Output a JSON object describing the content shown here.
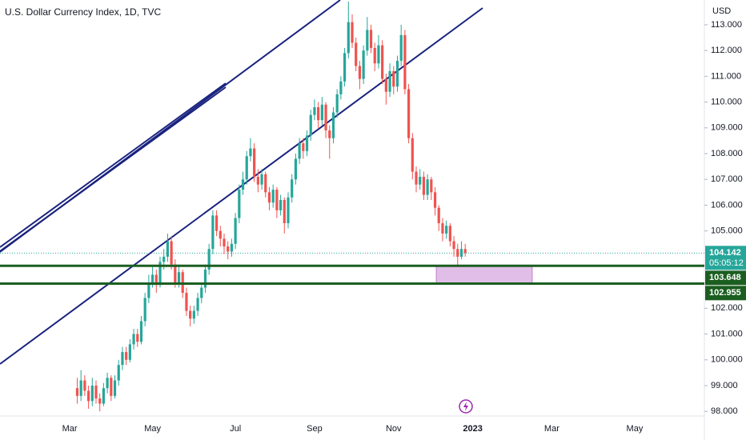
{
  "chart_data": {
    "type": "candlestick",
    "title": "U.S. Dollar Currency Index, 1D, TVC",
    "currency": "USD",
    "up_color": "#26a69a",
    "down_color": "#ef5350",
    "grid": false,
    "ylim": [
      97.82,
      113.96
    ],
    "yticks": [
      {
        "value": 98,
        "label": "98.000"
      },
      {
        "value": 99,
        "label": "99.000"
      },
      {
        "value": 100,
        "label": "100.000"
      },
      {
        "value": 101,
        "label": "101.000"
      },
      {
        "value": 102,
        "label": "102.000"
      },
      {
        "value": 105,
        "label": "105.000"
      },
      {
        "value": 106,
        "label": "106.000"
      },
      {
        "value": 107,
        "label": "107.000"
      },
      {
        "value": 108,
        "label": "108.000"
      },
      {
        "value": 109,
        "label": "109.000"
      },
      {
        "value": 110,
        "label": "110.000"
      },
      {
        "value": 111,
        "label": "111.000"
      },
      {
        "value": 112,
        "label": "112.000"
      },
      {
        "value": 113,
        "label": "113.000"
      }
    ],
    "categories": [
      null,
      null,
      null,
      null,
      null,
      null,
      null,
      null,
      null,
      null,
      null,
      null,
      null,
      null,
      null,
      null,
      null,
      null,
      "Mar",
      null,
      null,
      null,
      null,
      null,
      null,
      null,
      null,
      null,
      null,
      null,
      null,
      null,
      null,
      null,
      null,
      null,
      null,
      null,
      null,
      null,
      "May",
      null,
      null,
      null,
      null,
      null,
      null,
      null,
      null,
      null,
      null,
      null,
      null,
      null,
      null,
      null,
      null,
      null,
      null,
      null,
      null,
      null,
      "Jul",
      null,
      null,
      null,
      null,
      null,
      null,
      null,
      null,
      null,
      null,
      null,
      null,
      null,
      null,
      null,
      null,
      null,
      null,
      null,
      null,
      "Sep",
      null,
      null,
      null,
      null,
      null,
      null,
      null,
      null,
      null,
      null,
      null,
      null,
      null,
      null,
      null,
      null,
      null,
      null,
      null,
      null,
      "Nov",
      null,
      null,
      null,
      null,
      null,
      null,
      null,
      null,
      null,
      null,
      null,
      null,
      null,
      null,
      null,
      null,
      null,
      null,
      null,
      null,
      "2023",
      null,
      null,
      null,
      null,
      null,
      null,
      null,
      null,
      null,
      null,
      null,
      null,
      null,
      null,
      null,
      null,
      null,
      null,
      null,
      null,
      "Mar",
      null,
      null,
      null,
      null,
      null,
      null,
      null,
      null,
      null,
      null,
      null,
      null,
      null,
      null,
      null,
      null,
      null,
      null,
      null,
      null,
      null,
      "May",
      null,
      null,
      null,
      null,
      null,
      null,
      null,
      null,
      null,
      null,
      null,
      null,
      null,
      null,
      null,
      null,
      null,
      null
    ],
    "ohlc": [
      null,
      null,
      null,
      null,
      null,
      null,
      null,
      null,
      null,
      null,
      null,
      null,
      null,
      null,
      null,
      null,
      null,
      null,
      null,
      null,
      [
        98.9,
        99.3,
        98.3,
        98.6
      ],
      [
        98.6,
        99.6,
        98.4,
        99.2
      ],
      [
        99.2,
        99.4,
        98.6,
        98.8
      ],
      [
        98.8,
        99.0,
        98.1,
        98.4
      ],
      [
        98.4,
        99.3,
        98.2,
        99.0
      ],
      [
        99.0,
        99.2,
        98.3,
        98.5
      ],
      [
        98.5,
        98.7,
        98.0,
        98.3
      ],
      [
        98.3,
        99.1,
        98.2,
        98.9
      ],
      [
        98.9,
        99.5,
        98.7,
        99.3
      ],
      [
        99.3,
        99.4,
        98.4,
        98.6
      ],
      [
        98.6,
        99.4,
        98.5,
        99.2
      ],
      [
        99.2,
        100.0,
        99.0,
        99.8
      ],
      [
        99.8,
        100.5,
        99.6,
        100.3
      ],
      [
        100.3,
        100.5,
        99.8,
        100.0
      ],
      [
        100.0,
        100.8,
        99.9,
        100.6
      ],
      [
        100.6,
        101.2,
        100.4,
        101.0
      ],
      [
        101.0,
        101.2,
        100.5,
        100.7
      ],
      [
        100.7,
        101.7,
        100.6,
        101.5
      ],
      [
        101.5,
        102.6,
        101.3,
        102.4
      ],
      [
        102.4,
        103.3,
        102.2,
        103.0
      ],
      [
        103.0,
        103.6,
        102.8,
        103.3
      ],
      [
        103.3,
        103.5,
        102.6,
        102.9
      ],
      [
        102.9,
        104.0,
        102.8,
        103.8
      ],
      [
        103.8,
        104.3,
        103.5,
        104.0
      ],
      [
        104.0,
        104.9,
        103.8,
        104.6
      ],
      [
        104.6,
        104.8,
        103.5,
        103.7
      ],
      [
        103.7,
        103.9,
        102.8,
        103.0
      ],
      [
        103.0,
        103.7,
        102.8,
        103.4
      ],
      [
        103.4,
        103.5,
        102.4,
        102.6
      ],
      [
        102.6,
        102.8,
        101.7,
        101.9
      ],
      [
        101.9,
        102.1,
        101.3,
        101.6
      ],
      [
        101.6,
        102.1,
        101.4,
        101.9
      ],
      [
        101.9,
        102.6,
        101.7,
        102.4
      ],
      [
        102.4,
        103.0,
        102.2,
        102.8
      ],
      [
        102.8,
        103.7,
        102.6,
        103.5
      ],
      [
        103.5,
        104.5,
        103.3,
        104.3
      ],
      [
        104.3,
        105.8,
        104.1,
        105.6
      ],
      [
        105.6,
        105.8,
        104.8,
        105.0
      ],
      [
        105.0,
        105.2,
        104.4,
        104.7
      ],
      [
        104.7,
        104.9,
        104.1,
        104.4
      ],
      [
        104.4,
        104.6,
        103.9,
        104.2
      ],
      [
        104.2,
        104.7,
        104.0,
        104.5
      ],
      [
        104.5,
        105.7,
        104.3,
        105.5
      ],
      [
        105.5,
        106.8,
        105.3,
        106.6
      ],
      [
        106.6,
        107.3,
        106.4,
        107.0
      ],
      [
        107.0,
        108.1,
        106.8,
        107.9
      ],
      [
        107.9,
        108.6,
        107.7,
        108.2
      ],
      [
        108.2,
        108.4,
        106.9,
        107.1
      ],
      [
        107.1,
        107.4,
        106.5,
        106.8
      ],
      [
        106.8,
        107.4,
        106.6,
        107.2
      ],
      [
        107.2,
        107.3,
        106.3,
        106.5
      ],
      [
        106.5,
        106.7,
        105.8,
        106.1
      ],
      [
        106.1,
        106.8,
        105.9,
        106.6
      ],
      [
        106.6,
        106.7,
        105.5,
        105.8
      ],
      [
        105.8,
        106.4,
        105.6,
        106.2
      ],
      [
        106.2,
        106.3,
        104.9,
        105.3
      ],
      [
        105.3,
        106.5,
        105.1,
        106.3
      ],
      [
        106.3,
        107.2,
        106.1,
        107.0
      ],
      [
        107.0,
        108.0,
        106.8,
        107.8
      ],
      [
        107.8,
        108.6,
        107.6,
        108.4
      ],
      [
        108.4,
        108.6,
        107.8,
        108.1
      ],
      [
        108.1,
        108.9,
        107.9,
        108.7
      ],
      [
        108.7,
        109.7,
        108.5,
        109.5
      ],
      [
        109.5,
        110.1,
        109.3,
        109.8
      ],
      [
        109.8,
        110.0,
        109.0,
        109.3
      ],
      [
        109.3,
        110.2,
        109.1,
        109.9
      ],
      [
        109.9,
        110.0,
        108.6,
        108.9
      ],
      [
        108.9,
        109.1,
        107.8,
        108.6
      ],
      [
        108.6,
        109.8,
        108.4,
        109.6
      ],
      [
        109.6,
        110.5,
        109.4,
        110.3
      ],
      [
        110.3,
        111.0,
        110.1,
        110.8
      ],
      [
        110.8,
        112.1,
        110.6,
        111.9
      ],
      [
        111.9,
        113.9,
        111.7,
        113.1
      ],
      [
        113.1,
        113.4,
        112.1,
        112.3
      ],
      [
        112.3,
        112.5,
        111.2,
        111.4
      ],
      [
        111.4,
        111.6,
        110.5,
        110.9
      ],
      [
        110.9,
        112.2,
        110.7,
        112.0
      ],
      [
        112.0,
        113.3,
        111.8,
        112.8
      ],
      [
        112.8,
        113.0,
        111.9,
        112.1
      ],
      [
        112.1,
        112.3,
        111.2,
        111.5
      ],
      [
        111.5,
        112.6,
        111.3,
        112.2
      ],
      [
        112.2,
        112.4,
        110.7,
        110.9
      ],
      [
        110.9,
        111.1,
        109.9,
        110.4
      ],
      [
        110.4,
        111.5,
        110.2,
        111.2
      ],
      [
        111.2,
        111.4,
        110.3,
        110.6
      ],
      [
        110.6,
        111.8,
        110.4,
        111.6
      ],
      [
        111.6,
        113.0,
        111.4,
        112.6
      ],
      [
        112.6,
        112.8,
        110.3,
        110.5
      ],
      [
        110.5,
        110.7,
        108.4,
        108.6
      ],
      [
        108.6,
        108.8,
        107.0,
        107.3
      ],
      [
        107.3,
        107.5,
        106.5,
        106.8
      ],
      [
        106.8,
        107.4,
        106.6,
        107.1
      ],
      [
        107.1,
        107.3,
        106.2,
        106.4
      ],
      [
        106.4,
        107.2,
        106.2,
        107.0
      ],
      [
        107.0,
        107.1,
        106.2,
        106.5
      ],
      [
        106.5,
        106.7,
        105.6,
        105.9
      ],
      [
        105.9,
        106.0,
        105.0,
        105.3
      ],
      [
        105.3,
        105.5,
        104.6,
        104.9
      ],
      [
        104.9,
        105.4,
        104.7,
        105.2
      ],
      [
        105.2,
        105.3,
        104.4,
        104.6
      ],
      [
        104.6,
        104.8,
        104.0,
        104.3
      ],
      [
        104.3,
        104.5,
        103.6,
        104.0
      ],
      [
        104.0,
        104.6,
        103.9,
        104.3
      ],
      [
        104.3,
        104.5,
        104.0,
        104.142
      ],
      null,
      null,
      null,
      null,
      null,
      null,
      null,
      null,
      null,
      null,
      null,
      null,
      null,
      null,
      null,
      null,
      null,
      null,
      null,
      null,
      null,
      null,
      null,
      null,
      null,
      null,
      null,
      null,
      null,
      null,
      null,
      null,
      null,
      null,
      null,
      null,
      null,
      null,
      null,
      null,
      null,
      null,
      null,
      null,
      null,
      null,
      null,
      null,
      null,
      null,
      null,
      null,
      null,
      null,
      null,
      null,
      null,
      null,
      null,
      null,
      null,
      null,
      null
    ],
    "last_price": {
      "value": 104.142,
      "label": "104.142"
    },
    "countdown": "05:05:12",
    "levels": [
      {
        "value": 103.648,
        "label": "103.648"
      },
      {
        "value": 102.955,
        "label": "102.955"
      }
    ],
    "level_color": "#1b5e20",
    "zone_color": "#e1bee7"
  }
}
